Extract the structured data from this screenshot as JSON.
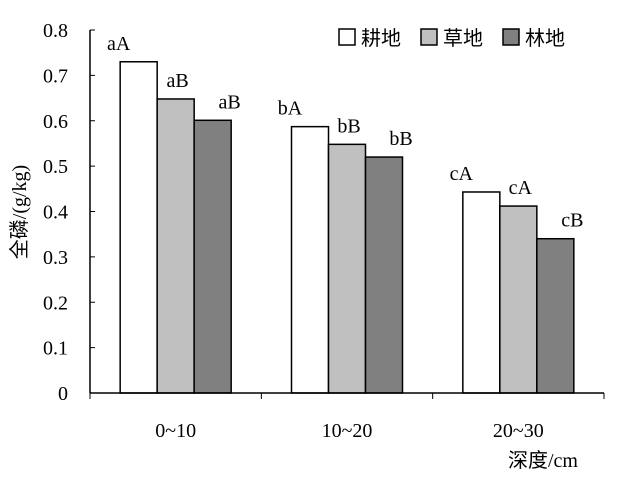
{
  "chart_data": {
    "type": "bar",
    "ylabel": "全磷/(g/kg)",
    "xlabel": "深度/cm",
    "categories": [
      "0~10",
      "10~20",
      "20~30"
    ],
    "ylim": [
      0,
      0.8
    ],
    "yticks": [
      "0",
      "0.1",
      "0.2",
      "0.3",
      "0.4",
      "0.5",
      "0.6",
      "0.7",
      "0.8"
    ],
    "grid": false,
    "legend_position": "top-right",
    "series": [
      {
        "name": "耕地",
        "color": "#ffffff",
        "values": [
          0.73,
          0.587,
          0.443
        ],
        "labels": [
          "aA",
          "bA",
          "cA"
        ]
      },
      {
        "name": "草地",
        "color": "#c0c0c0",
        "values": [
          0.648,
          0.548,
          0.412
        ],
        "labels": [
          "aB",
          "bB",
          "cA"
        ]
      },
      {
        "name": "林地",
        "color": "#808080",
        "values": [
          0.601,
          0.52,
          0.34
        ],
        "labels": [
          "aB",
          "bB",
          "cB"
        ]
      }
    ]
  }
}
